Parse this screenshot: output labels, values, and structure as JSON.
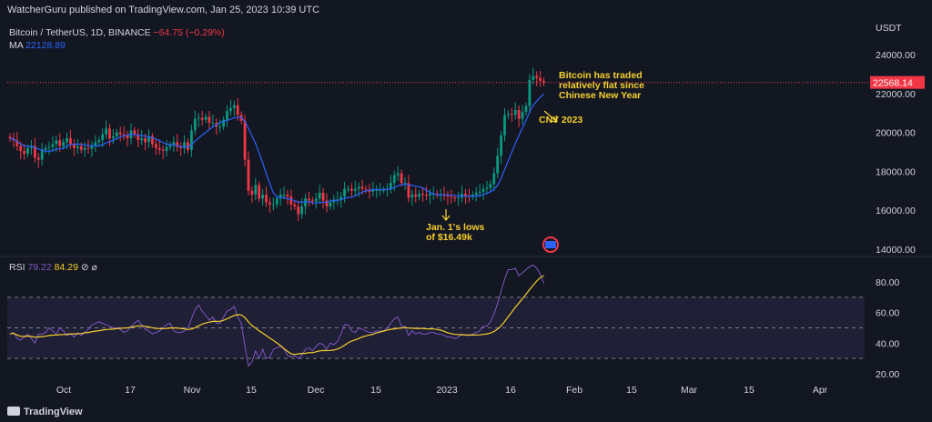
{
  "header": {
    "published": "WatcherGuru published on TradingView.com, Jan 25, 2023 10:39 UTC"
  },
  "legend": {
    "symbol": "Bitcoin / TetherUS, 1D, BINANCE",
    "change": "−64.75 (−0.29%)",
    "ma_label": "MA",
    "ma_value": "22128.89",
    "rsi_label": "RSI",
    "rsi_value": "79.22",
    "rsi_ma_value": "84.29",
    "rsi_icons": "⊘ ⌀"
  },
  "price_axis": {
    "unit": "USDT",
    "ticks": [
      "24000.00",
      "22000.00",
      "20000.00",
      "18000.00",
      "16000.00",
      "14000.00"
    ],
    "last_price": "22568.14"
  },
  "rsi_axis": {
    "ticks": [
      "80.00",
      "60.00",
      "40.00",
      "20.00"
    ]
  },
  "time_axis": [
    "Oct",
    "17",
    "Nov",
    "15",
    "Dec",
    "15",
    "2023",
    "16",
    "Feb",
    "15",
    "Mar",
    "15",
    "Apr"
  ],
  "annotations": {
    "cny_note": [
      "Bitcoin has traded",
      "relatively flat since",
      "Chinese New Year"
    ],
    "cny_label": "CNY 2023",
    "lows_note": [
      "Jan. 1's lows",
      "of $16.49k"
    ]
  },
  "footer": {
    "brand": "TradingView"
  },
  "colors": {
    "up": "#089981",
    "down": "#f23645",
    "ma": "#2962ff",
    "rsi": "#7e57c2",
    "rsi_ma": "#f7d02b",
    "annotation": "#f7d02b"
  },
  "chart_data": [
    {
      "type": "candlestick",
      "title": "Bitcoin / TetherUS, 1D, BINANCE",
      "ylabel": "USDT",
      "ylim": [
        13500,
        25000
      ],
      "x_ticks": [
        "Oct",
        "17",
        "Nov",
        "15",
        "Dec",
        "15",
        "2023",
        "16",
        "Feb",
        "15",
        "Mar",
        "15",
        "Apr"
      ],
      "series": [
        {
          "name": "Close",
          "values": [
            19700,
            19600,
            19300,
            19050,
            18900,
            19200,
            19300,
            18700,
            18600,
            19100,
            19200,
            19250,
            19400,
            19600,
            19300,
            19500,
            19700,
            19400,
            19200,
            19300,
            19100,
            19200,
            19150,
            19300,
            19500,
            19600,
            19900,
            20200,
            19700,
            19800,
            20000,
            19900,
            19850,
            19700,
            20100,
            19900,
            19600,
            19700,
            19500,
            19800,
            19400,
            19200,
            19100,
            19050,
            19250,
            19350,
            19500,
            19250,
            19200,
            19500,
            19100,
            20100,
            20700,
            20750,
            20650,
            20800,
            20500,
            20500,
            20300,
            20300,
            20650,
            21100,
            21250,
            21400,
            20900,
            20600,
            18600,
            17000,
            16800,
            17300,
            16600,
            16800,
            16400,
            16300,
            16300,
            16600,
            16800,
            16800,
            16700,
            16300,
            16200,
            15800,
            16200,
            16600,
            16500,
            16450,
            16600,
            16900,
            16500,
            16200,
            16400,
            16500,
            16550,
            16700,
            17100,
            17100,
            17000,
            17100,
            17200,
            17100,
            17050,
            16950,
            17050,
            17050,
            17050,
            17050,
            17100,
            17400,
            17800,
            17900,
            17400,
            17400,
            16650,
            16800,
            16700,
            16850,
            16800,
            16750,
            16850,
            16850,
            16800,
            16800,
            16750,
            16700,
            16650,
            16600,
            16650,
            16850,
            16750,
            16700,
            16800,
            16900,
            16950,
            17100,
            17150,
            17350,
            17900,
            18800,
            19850,
            20880,
            20950,
            20900,
            21150,
            20700,
            21050,
            21350,
            22700,
            22900,
            22800,
            22650,
            22570
          ]
        },
        {
          "name": "MA",
          "values": [
            22128.89
          ]
        }
      ]
    },
    {
      "type": "line",
      "title": "RSI",
      "ylim": [
        20,
        100
      ],
      "series": [
        {
          "name": "RSI",
          "values": [
            46,
            47,
            43,
            42,
            44,
            46,
            43,
            40,
            46,
            46,
            47,
            50,
            48,
            46,
            50,
            48,
            45,
            46,
            44,
            47,
            45,
            47,
            49,
            52,
            53,
            54,
            53,
            52,
            51,
            50,
            50,
            49,
            47,
            48,
            51,
            53,
            55,
            52,
            49,
            48,
            46,
            47,
            48,
            50,
            52,
            53,
            48,
            47,
            47,
            48,
            50,
            56,
            62,
            65,
            61,
            58,
            55,
            57,
            53,
            53,
            57,
            61,
            62,
            64,
            57,
            53,
            38,
            25,
            28,
            35,
            30,
            36,
            30,
            31,
            36,
            37,
            38,
            36,
            32,
            31,
            32,
            30,
            32,
            36,
            37,
            35,
            38,
            40,
            39,
            36,
            40,
            39,
            41,
            46,
            52,
            52,
            48,
            47,
            50,
            49,
            48,
            47,
            47,
            48,
            48,
            48,
            50,
            53,
            56,
            57,
            51,
            51,
            45,
            48,
            46,
            47,
            46,
            46,
            47,
            47,
            46,
            46,
            45,
            44,
            44,
            43,
            44,
            46,
            45,
            45,
            46,
            47,
            48,
            51,
            51,
            54,
            59,
            66,
            74,
            82,
            88,
            88,
            89,
            84,
            86,
            88,
            90,
            91,
            89,
            85,
            79
          ]
        },
        {
          "name": "RSI MA",
          "values": [
            84.29
          ]
        }
      ]
    }
  ]
}
